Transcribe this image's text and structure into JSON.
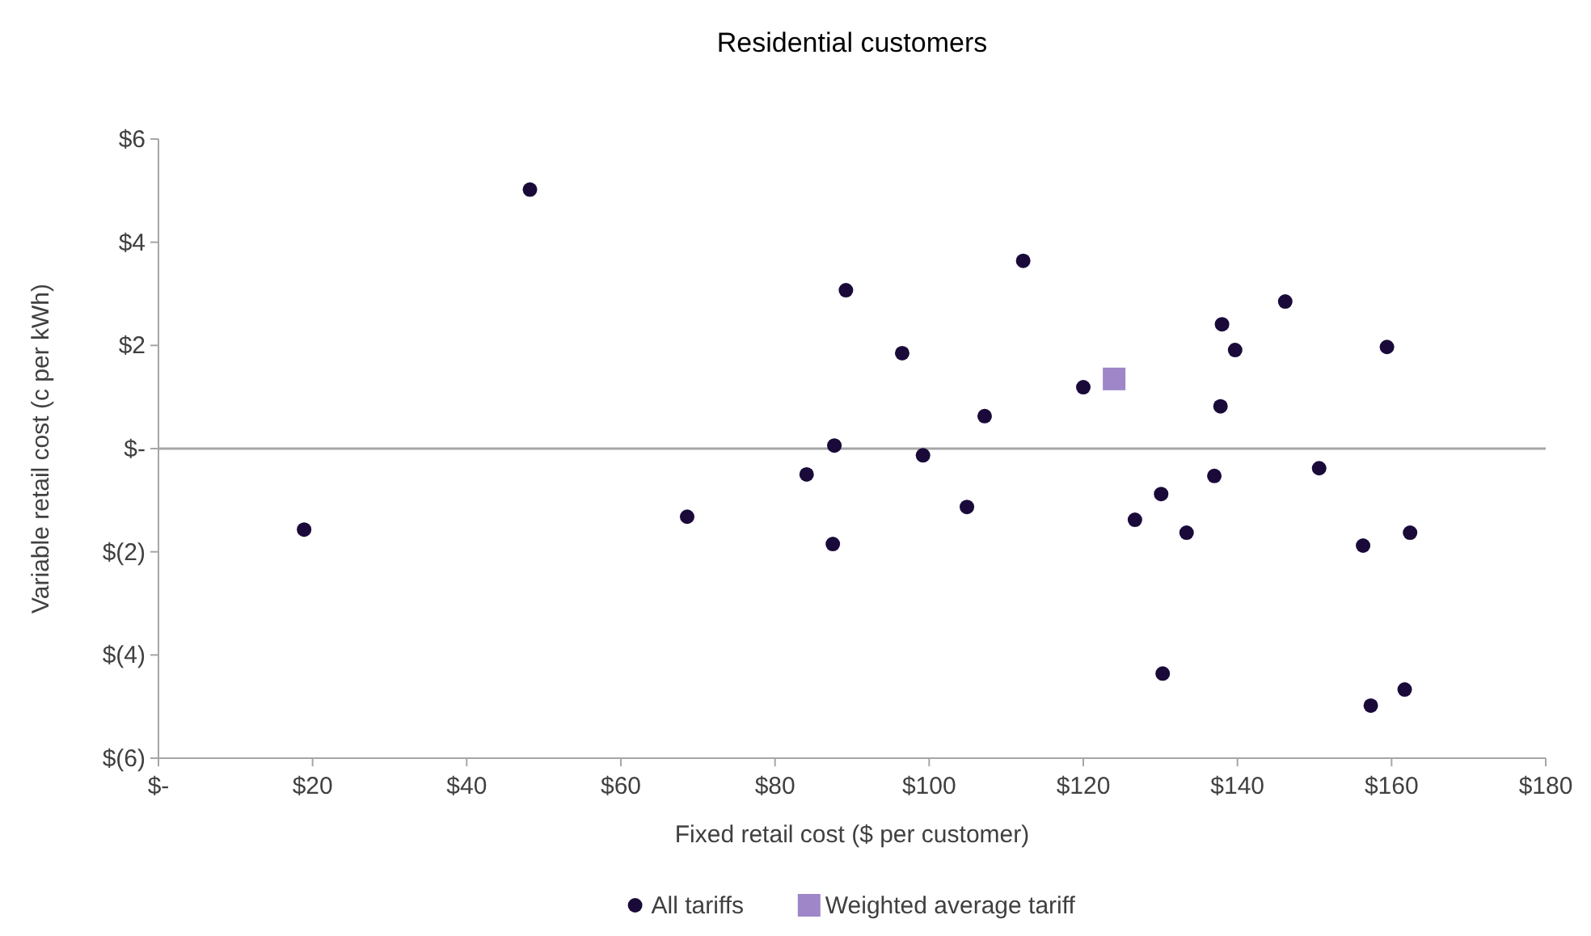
{
  "chart_data": {
    "type": "scatter",
    "title": "Residential customers",
    "xlabel": "Fixed retail cost ($ per customer)",
    "ylabel": "Variable retail cost (c per kWh)",
    "xlim": [
      0,
      180
    ],
    "xticks": [
      {
        "value": 0,
        "label": "$-"
      },
      {
        "value": 20,
        "label": "$20"
      },
      {
        "value": 40,
        "label": "$40"
      },
      {
        "value": 60,
        "label": "$60"
      },
      {
        "value": 80,
        "label": "$80"
      },
      {
        "value": 100,
        "label": "$100"
      },
      {
        "value": 120,
        "label": "$120"
      },
      {
        "value": 140,
        "label": "$140"
      },
      {
        "value": 160,
        "label": "$160"
      },
      {
        "value": 180,
        "label": "$180"
      }
    ],
    "ylim": [
      -6,
      6
    ],
    "yticks": [
      {
        "value": -6,
        "label": "$(6)"
      },
      {
        "value": -4,
        "label": "$(4)"
      },
      {
        "value": -2,
        "label": "$(2)"
      },
      {
        "value": 0,
        "label": "$-"
      },
      {
        "value": 2,
        "label": "$2"
      },
      {
        "value": 4,
        "label": "$4"
      },
      {
        "value": 6,
        "label": "$6"
      }
    ],
    "grid": false,
    "legend": "bottom",
    "ref_lines": [
      {
        "axis": "y",
        "value": 0,
        "color": "#a6a6a6"
      }
    ],
    "series": [
      {
        "name": "All tariffs",
        "color": "#1a0a3a",
        "marker": "circle",
        "x": [
          18.9,
          48.2,
          68.6,
          84.1,
          87.7,
          87.5,
          89.2,
          96.5,
          99.2,
          104.9,
          107.2,
          112.2,
          120,
          126.7,
          130.1,
          130.3,
          133.4,
          137,
          137.8,
          138,
          139.7,
          146.2,
          150.6,
          156.3,
          157.3,
          159.4,
          161.7,
          162.4
        ],
        "values": [
          -1.57,
          5.02,
          -1.32,
          -0.5,
          0.06,
          -1.85,
          3.07,
          1.85,
          -0.13,
          -1.13,
          0.63,
          3.64,
          1.19,
          -1.38,
          -0.88,
          -4.36,
          -1.63,
          -0.53,
          0.82,
          2.41,
          1.91,
          2.85,
          -0.38,
          -1.88,
          -4.98,
          1.97,
          -4.67,
          -1.63
        ]
      },
      {
        "name": "Weighted average tariff",
        "color": "#9e86c8",
        "marker": "square",
        "x": [
          124
        ],
        "values": [
          1.35
        ]
      }
    ]
  }
}
